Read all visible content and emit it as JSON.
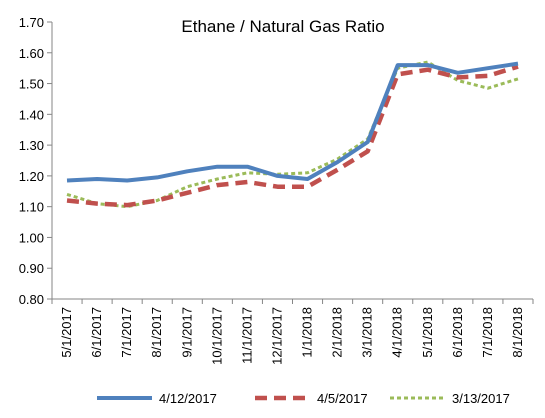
{
  "chart_data": {
    "type": "line",
    "title": "Ethane / Natural Gas Ratio",
    "xlabel": "",
    "ylabel": "",
    "categories": [
      "5/1/2017",
      "6/1/2017",
      "7/1/2017",
      "8/1/2017",
      "9/1/2017",
      "10/1/2017",
      "11/1/2017",
      "12/1/2017",
      "1/1/2018",
      "2/1/2018",
      "3/1/2018",
      "4/1/2018",
      "5/1/2018",
      "6/1/2018",
      "7/1/2018",
      "8/1/2018"
    ],
    "yticks": [
      "0.80",
      "0.90",
      "1.00",
      "1.10",
      "1.20",
      "1.30",
      "1.40",
      "1.50",
      "1.60",
      "1.70"
    ],
    "ylim": [
      0.8,
      1.7
    ],
    "grid": false,
    "legend_position": "bottom",
    "series": [
      {
        "name": "4/12/2017",
        "color": "#4F81BD",
        "style": "solid",
        "values": [
          1.185,
          1.19,
          1.185,
          1.195,
          1.215,
          1.23,
          1.23,
          1.2,
          1.19,
          1.245,
          1.31,
          1.56,
          1.56,
          1.535,
          1.55,
          1.565
        ]
      },
      {
        "name": "4/5/2017",
        "color": "#C0504D",
        "style": "dashed",
        "values": [
          1.12,
          1.11,
          1.105,
          1.12,
          1.145,
          1.17,
          1.18,
          1.165,
          1.165,
          1.22,
          1.28,
          1.53,
          1.545,
          1.52,
          1.525,
          1.555
        ]
      },
      {
        "name": "3/13/2017",
        "color": "#9BBB59",
        "style": "dotted",
        "values": [
          1.14,
          1.11,
          1.1,
          1.12,
          1.165,
          1.19,
          1.21,
          1.205,
          1.21,
          1.255,
          1.32,
          1.55,
          1.57,
          1.51,
          1.485,
          1.515
        ]
      }
    ]
  }
}
